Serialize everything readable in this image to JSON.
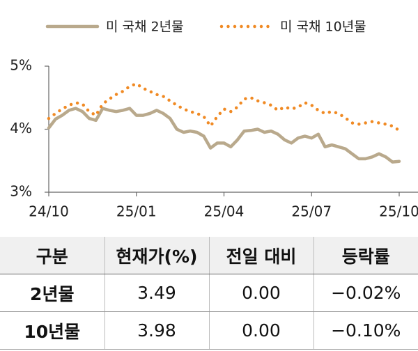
{
  "chart_data": {
    "type": "line",
    "series": [
      {
        "name": "미 국채 2년물",
        "color": "#b9a98c",
        "values": [
          4.02,
          4.16,
          4.22,
          4.3,
          4.33,
          4.28,
          4.17,
          4.14,
          4.33,
          4.3,
          4.28,
          4.3,
          4.33,
          4.22,
          4.22,
          4.25,
          4.3,
          4.25,
          4.17,
          4.0,
          3.95,
          3.97,
          3.95,
          3.89,
          3.7,
          3.78,
          3.78,
          3.72,
          3.83,
          3.97,
          3.98,
          4.0,
          3.95,
          3.97,
          3.92,
          3.83,
          3.78,
          3.86,
          3.89,
          3.86,
          3.92,
          3.72,
          3.75,
          3.72,
          3.69,
          3.61,
          3.53,
          3.53,
          3.56,
          3.61,
          3.56,
          3.48,
          3.49
        ]
      },
      {
        "name": "미 국채 10년물",
        "color": "#f08a24",
        "values": [
          4.17,
          4.25,
          4.32,
          4.38,
          4.42,
          4.4,
          4.28,
          4.22,
          4.4,
          4.48,
          4.55,
          4.6,
          4.68,
          4.72,
          4.65,
          4.6,
          4.55,
          4.52,
          4.45,
          4.38,
          4.32,
          4.28,
          4.25,
          4.2,
          4.05,
          4.2,
          4.32,
          4.28,
          4.35,
          4.48,
          4.5,
          4.45,
          4.42,
          4.38,
          4.3,
          4.35,
          4.32,
          4.35,
          4.42,
          4.38,
          4.3,
          4.25,
          4.28,
          4.25,
          4.18,
          4.1,
          4.08,
          4.1,
          4.12,
          4.1,
          4.08,
          4.05,
          3.98
        ]
      }
    ],
    "categories": [
      "24/10",
      null,
      null,
      null,
      null,
      null,
      null,
      null,
      null,
      null,
      null,
      null,
      null,
      "25/01",
      null,
      null,
      null,
      null,
      null,
      null,
      null,
      null,
      null,
      null,
      null,
      null,
      "25/04",
      null,
      null,
      null,
      null,
      null,
      null,
      null,
      null,
      null,
      null,
      null,
      null,
      "25/07",
      null,
      null,
      null,
      null,
      null,
      null,
      null,
      null,
      null,
      null,
      null,
      null,
      "25/10"
    ],
    "ylim": [
      3,
      5
    ],
    "yticks": [
      {
        "value": 3,
        "label": "3%"
      },
      {
        "value": 4,
        "label": "4%"
      },
      {
        "value": 5,
        "label": "5%"
      }
    ]
  },
  "table": {
    "header": [
      "구분",
      "현재가(%)",
      "전일 대비",
      "등락률"
    ],
    "rows": [
      [
        "2년물",
        "3.49",
        "0.00",
        "−0.02%"
      ],
      [
        "10년물",
        "3.98",
        "0.00",
        "−0.10%"
      ]
    ]
  }
}
